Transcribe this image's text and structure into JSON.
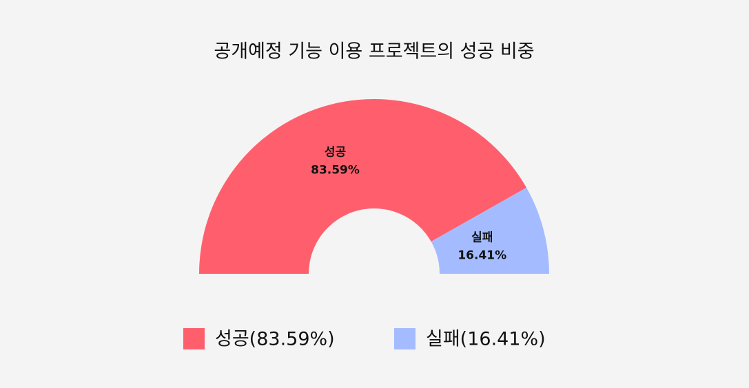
{
  "chart_data": {
    "type": "half-donut",
    "title": "공개예정 기능 이용 프로젝트의 성공 비중",
    "categories": [
      "성공",
      "실패"
    ],
    "values": [
      83.59,
      16.41
    ],
    "value_labels": [
      "83.59%",
      "16.41%"
    ],
    "colors": [
      "#ff5f6d",
      "#a4bcff"
    ],
    "legend_labels": [
      "성공(83.59%)",
      "실패(16.41%)"
    ]
  }
}
